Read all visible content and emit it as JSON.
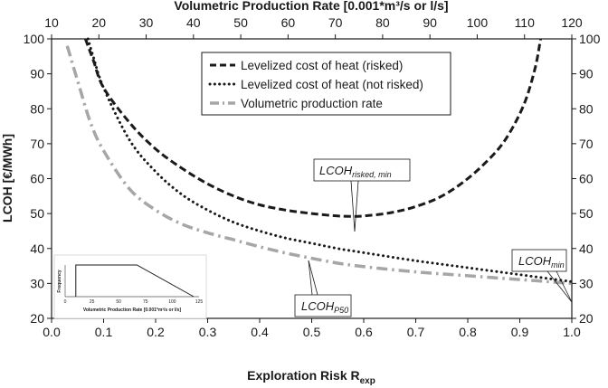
{
  "chart_data": {
    "type": "line",
    "top_axis": {
      "label": "Volumetric Production Rate [0.001*m³/s or l/s]",
      "range": [
        10,
        120
      ],
      "ticks": [
        "10",
        "20",
        "30",
        "40",
        "50",
        "60",
        "70",
        "80",
        "90",
        "100",
        "110",
        "120"
      ]
    },
    "x_axis": {
      "label_main": "Exploration Risk R",
      "label_sub": "exp",
      "range": [
        0,
        1
      ],
      "ticks": [
        "0.0",
        "0.1",
        "0.2",
        "0.3",
        "0.4",
        "0.5",
        "0.6",
        "0.7",
        "0.8",
        "0.9",
        "1.0"
      ]
    },
    "y_axis": {
      "label": "LCOH [€/MWh]",
      "range": [
        20,
        100
      ],
      "ticks": [
        "20",
        "30",
        "40",
        "50",
        "60",
        "70",
        "80",
        "90",
        "100"
      ]
    },
    "y2_axis": {
      "range": [
        20,
        100
      ],
      "ticks": [
        "20",
        "30",
        "40",
        "50",
        "60",
        "70",
        "80",
        "90",
        "100"
      ]
    },
    "legend": {
      "position": "top-center",
      "items": [
        {
          "label": "Levelized cost of heat (risked)",
          "style": "dashed",
          "color": "#1a1a1a"
        },
        {
          "label": "Levelized cost of heat (not risked)",
          "style": "dotted",
          "color": "#1a1a1a"
        },
        {
          "label": "Volumetric production rate",
          "style": "dashdot",
          "color": "#a6a6a6"
        }
      ]
    },
    "series": [
      {
        "name": "Levelized cost of heat (risked)",
        "x": [
          0.065,
          0.08,
          0.1,
          0.15,
          0.2,
          0.25,
          0.3,
          0.35,
          0.4,
          0.45,
          0.5,
          0.55,
          0.58,
          0.6,
          0.65,
          0.7,
          0.75,
          0.8,
          0.85,
          0.88,
          0.91,
          0.93,
          0.94
        ],
        "y": [
          100,
          94,
          86,
          76,
          68.5,
          63,
          58.5,
          55,
          52.5,
          51,
          50,
          49.3,
          49.2,
          49.3,
          50.2,
          52,
          55,
          60,
          67,
          73,
          82,
          92,
          100
        ]
      },
      {
        "name": "Levelized cost of heat (not risked)",
        "x": [
          0.07,
          0.08,
          0.1,
          0.15,
          0.2,
          0.25,
          0.3,
          0.35,
          0.4,
          0.45,
          0.5,
          0.55,
          0.6,
          0.7,
          0.8,
          0.9,
          1.0
        ],
        "y": [
          100,
          95,
          86,
          71,
          62,
          55.5,
          51,
          47.5,
          45,
          43,
          41.5,
          40,
          38.8,
          36.5,
          34.5,
          32.5,
          30.5
        ]
      },
      {
        "name": "Volumetric production rate",
        "x": [
          0.03,
          0.05,
          0.075,
          0.1,
          0.15,
          0.2,
          0.25,
          0.3,
          0.35,
          0.4,
          0.45,
          0.5,
          0.55,
          0.6,
          0.7,
          0.8,
          0.9,
          1.0
        ],
        "y": [
          98,
          88,
          76,
          68,
          57,
          51,
          47,
          44.5,
          42.5,
          40.5,
          38.7,
          37.2,
          35.8,
          34.8,
          33.3,
          32.2,
          31.1,
          30
        ]
      }
    ],
    "annotations": [
      {
        "main": "LCOH",
        "sub": "risked, min",
        "x": 0.58,
        "y": 49.2
      },
      {
        "main": "LCOH",
        "sub": "P50",
        "x": 0.5,
        "y": 41.5
      },
      {
        "main": "LCOH",
        "sub": "min",
        "x": 1.0,
        "y": 30.5
      }
    ],
    "inset": {
      "type": "line",
      "xlabel": "Volumetric Production Rate [0.001*m³/s or l/s]",
      "ylabel": "Frequency",
      "xticks": [
        "0",
        "25",
        "50",
        "75",
        "100",
        "125"
      ],
      "xrange": [
        0,
        125
      ],
      "x": [
        10,
        10,
        67,
        120
      ],
      "y": [
        0,
        1,
        1,
        0
      ]
    }
  }
}
